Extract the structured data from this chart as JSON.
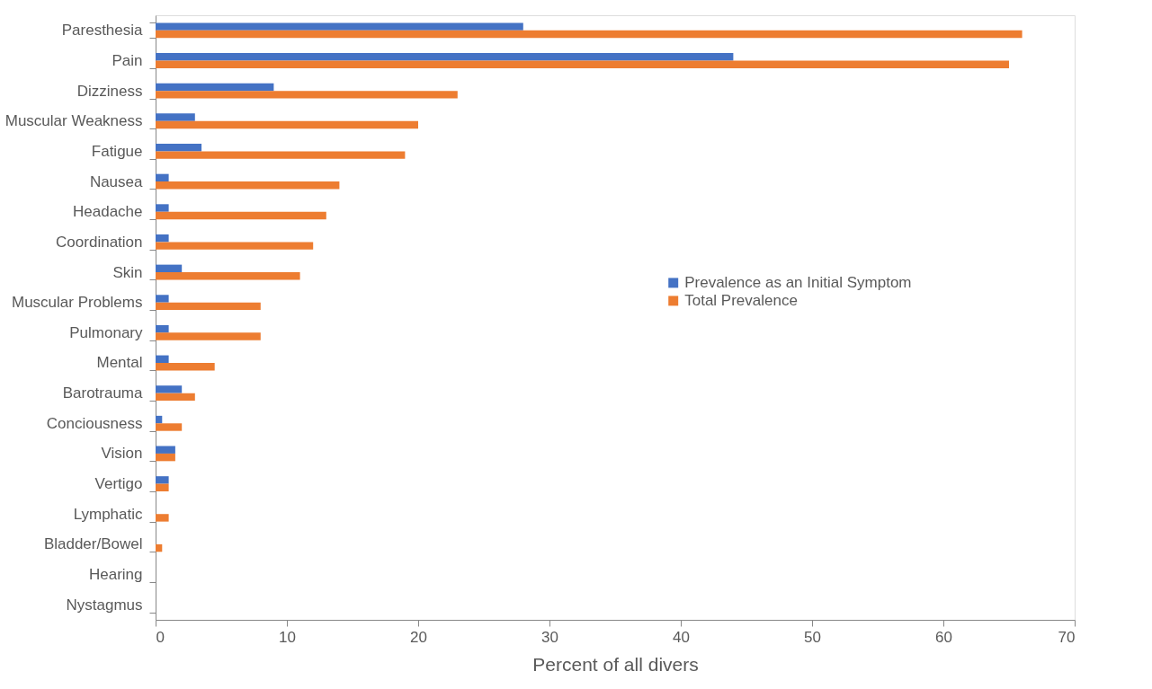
{
  "chart_data": {
    "type": "bar",
    "orientation": "horizontal",
    "xlabel": "Percent of all divers",
    "categories": [
      "Paresthesia",
      "Pain",
      "Dizziness",
      "Muscular Weakness",
      "Fatigue",
      "Nausea",
      "Headache",
      "Coordination",
      "Skin",
      "Muscular Problems",
      "Pulmonary",
      "Mental",
      "Barotrauma",
      "Conciousness",
      "Vision",
      "Vertigo",
      "Lymphatic",
      "Bladder/Bowel",
      "Hearing",
      "Nystagmus"
    ],
    "series": [
      {
        "name": "Prevalence as an Initial Symptom",
        "color": "#4472c4",
        "values": [
          28,
          44,
          9,
          3,
          3.5,
          1,
          1,
          1,
          2,
          1,
          1,
          1,
          2,
          0.5,
          1.5,
          1,
          0,
          0,
          0,
          0
        ]
      },
      {
        "name": "Total Prevalence",
        "color": "#ed7d31",
        "values": [
          66,
          65,
          23,
          20,
          19,
          14,
          13,
          12,
          11,
          8,
          8,
          4.5,
          3,
          2,
          1.5,
          1,
          1,
          0.5,
          0,
          0
        ]
      }
    ],
    "xlim": [
      0,
      70
    ],
    "xticks": [
      0,
      10,
      20,
      30,
      40,
      50,
      60,
      70
    ],
    "grid": false,
    "legend": "right"
  }
}
